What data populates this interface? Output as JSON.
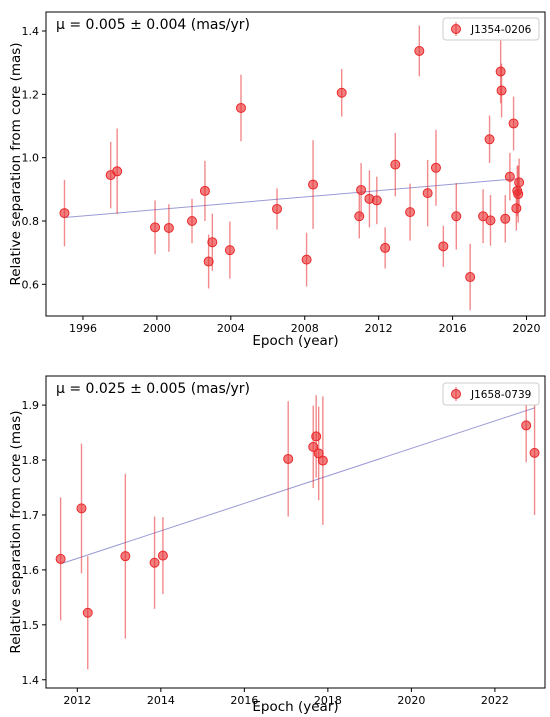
{
  "chart_data": [
    {
      "type": "scatter",
      "annotation": "μ = 0.005 ± 0.004 (mas/yr)",
      "xlabel": "Epoch (year)",
      "ylabel": "Relative separation from core (mas)",
      "xlim": [
        1994.0,
        2021.0
      ],
      "ylim": [
        0.5,
        1.46
      ],
      "xticks": [
        "1996",
        "2000",
        "2004",
        "2008",
        "2012",
        "2016",
        "2020"
      ],
      "xtick_values": [
        1996,
        2000,
        2004,
        2008,
        2012,
        2016,
        2020
      ],
      "yticks": [
        "0.6",
        "0.8",
        "1.0",
        "1.2",
        "1.4"
      ],
      "ytick_values": [
        0.6,
        0.8,
        1.0,
        1.2,
        1.4
      ],
      "legend_position": "top-right",
      "grid": false,
      "series": [
        {
          "name": "J1354-0206",
          "color": "#e8292b",
          "points": [
            {
              "x": 1995.0,
              "y": 0.825,
              "err": 0.105
            },
            {
              "x": 1997.5,
              "y": 0.945,
              "err": 0.105
            },
            {
              "x": 1997.85,
              "y": 0.957,
              "err": 0.135
            },
            {
              "x": 1999.9,
              "y": 0.78,
              "err": 0.085
            },
            {
              "x": 2000.65,
              "y": 0.778,
              "err": 0.075
            },
            {
              "x": 2001.9,
              "y": 0.8,
              "err": 0.07
            },
            {
              "x": 2002.6,
              "y": 0.895,
              "err": 0.095
            },
            {
              "x": 2002.8,
              "y": 0.672,
              "err": 0.085
            },
            {
              "x": 2003.0,
              "y": 0.733,
              "err": 0.09
            },
            {
              "x": 2003.95,
              "y": 0.708,
              "err": 0.09
            },
            {
              "x": 2004.55,
              "y": 1.157,
              "err": 0.105
            },
            {
              "x": 2006.5,
              "y": 0.838,
              "err": 0.065
            },
            {
              "x": 2008.1,
              "y": 0.678,
              "err": 0.085
            },
            {
              "x": 2008.45,
              "y": 0.915,
              "err": 0.14
            },
            {
              "x": 2010.0,
              "y": 1.205,
              "err": 0.075
            },
            {
              "x": 2010.95,
              "y": 0.815,
              "err": 0.07
            },
            {
              "x": 2011.05,
              "y": 0.898,
              "err": 0.085
            },
            {
              "x": 2011.5,
              "y": 0.87,
              "err": 0.09
            },
            {
              "x": 2011.9,
              "y": 0.865,
              "err": 0.075
            },
            {
              "x": 2012.35,
              "y": 0.715,
              "err": 0.065
            },
            {
              "x": 2012.9,
              "y": 0.978,
              "err": 0.1
            },
            {
              "x": 2013.7,
              "y": 0.828,
              "err": 0.09
            },
            {
              "x": 2014.2,
              "y": 1.337,
              "err": 0.08
            },
            {
              "x": 2014.65,
              "y": 0.888,
              "err": 0.105
            },
            {
              "x": 2015.1,
              "y": 0.968,
              "err": 0.12
            },
            {
              "x": 2015.5,
              "y": 0.72,
              "err": 0.065
            },
            {
              "x": 2016.2,
              "y": 0.815,
              "err": 0.105
            },
            {
              "x": 2016.95,
              "y": 0.623,
              "err": 0.105
            },
            {
              "x": 2017.65,
              "y": 0.815,
              "err": 0.085
            },
            {
              "x": 2018.0,
              "y": 1.058,
              "err": 0.075
            },
            {
              "x": 2018.05,
              "y": 0.802,
              "err": 0.08
            },
            {
              "x": 2018.6,
              "y": 1.272,
              "err": 0.1
            },
            {
              "x": 2018.65,
              "y": 1.212,
              "err": 0.085
            },
            {
              "x": 2018.85,
              "y": 0.807,
              "err": 0.075
            },
            {
              "x": 2019.1,
              "y": 0.94,
              "err": 0.075
            },
            {
              "x": 2019.3,
              "y": 1.108,
              "err": 0.085
            },
            {
              "x": 2019.45,
              "y": 0.84,
              "err": 0.07
            },
            {
              "x": 2019.5,
              "y": 0.895,
              "err": 0.08
            },
            {
              "x": 2019.55,
              "y": 0.885,
              "err": 0.09
            },
            {
              "x": 2019.6,
              "y": 0.922,
              "err": 0.075
            }
          ]
        }
      ],
      "fit": {
        "x": [
          1995.0,
          2019.6
        ],
        "y": [
          0.811,
          0.934
        ],
        "color": "#8888cc"
      }
    },
    {
      "type": "scatter",
      "annotation": "μ = 0.025 ± 0.005 (mas/yr)",
      "xlabel": "Epoch (year)",
      "ylabel": "Relative separation from core (mas)",
      "xlim": [
        2011.25,
        2023.2
      ],
      "ylim": [
        1.385,
        1.953
      ],
      "xticks": [
        "2012",
        "2014",
        "2016",
        "2018",
        "2020",
        "2022"
      ],
      "xtick_values": [
        2012,
        2014,
        2016,
        2018,
        2020,
        2022
      ],
      "yticks": [
        "1.4",
        "1.5",
        "1.6",
        "1.7",
        "1.8",
        "1.9"
      ],
      "ytick_values": [
        1.4,
        1.5,
        1.6,
        1.7,
        1.8,
        1.9
      ],
      "legend_position": "top-right",
      "grid": false,
      "series": [
        {
          "name": "J1658-0739",
          "color": "#e8292b",
          "points": [
            {
              "x": 2011.6,
              "y": 1.62,
              "err": 0.112
            },
            {
              "x": 2012.1,
              "y": 1.712,
              "err": 0.118
            },
            {
              "x": 2012.25,
              "y": 1.522,
              "err": 0.103
            },
            {
              "x": 2013.15,
              "y": 1.625,
              "err": 0.15
            },
            {
              "x": 2013.85,
              "y": 1.613,
              "err": 0.084
            },
            {
              "x": 2014.05,
              "y": 1.626,
              "err": 0.07
            },
            {
              "x": 2017.05,
              "y": 1.802,
              "err": 0.105
            },
            {
              "x": 2017.65,
              "y": 1.824,
              "err": 0.075
            },
            {
              "x": 2017.72,
              "y": 1.843,
              "err": 0.075
            },
            {
              "x": 2017.78,
              "y": 1.812,
              "err": 0.085
            },
            {
              "x": 2017.88,
              "y": 1.799,
              "err": 0.117
            },
            {
              "x": 2022.75,
              "y": 1.863,
              "err": 0.067
            },
            {
              "x": 2022.95,
              "y": 1.813,
              "err": 0.113
            }
          ]
        }
      ],
      "fit": {
        "x": [
          2011.6,
          2022.95
        ],
        "y": [
          1.611,
          1.895
        ],
        "color": "#8888cc"
      }
    }
  ]
}
